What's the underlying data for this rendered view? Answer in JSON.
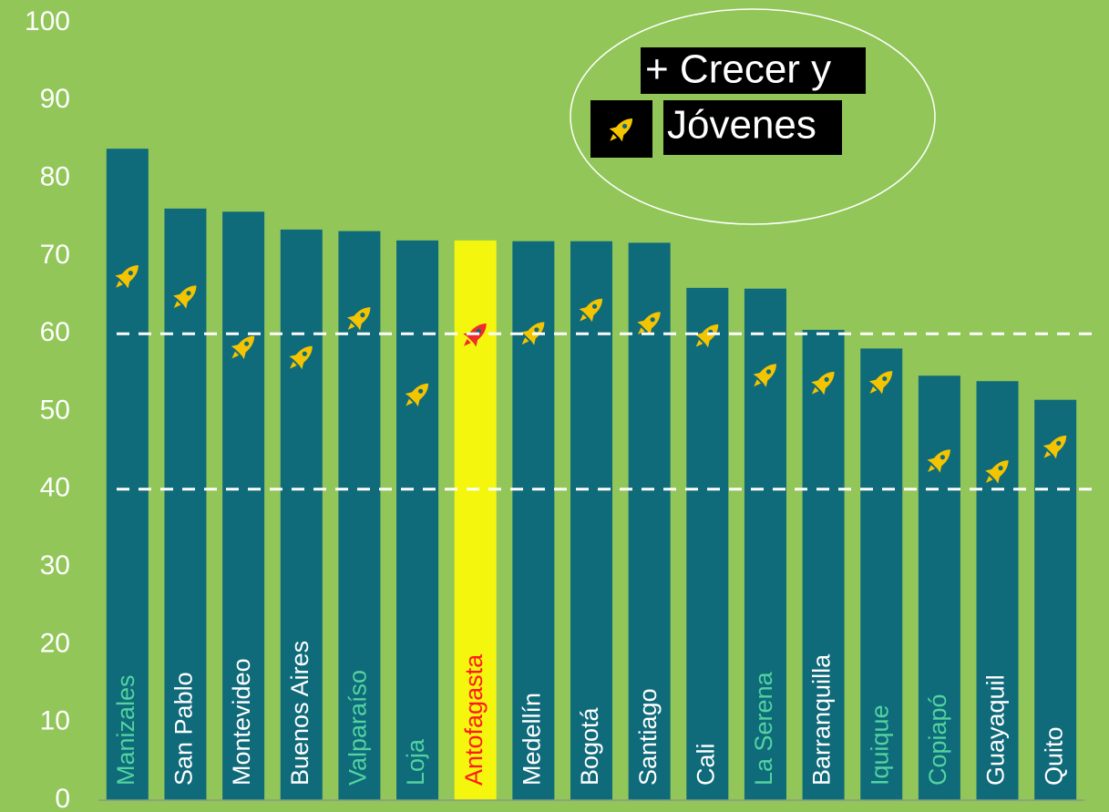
{
  "chart_data": {
    "type": "bar",
    "categories": [
      "Manizales",
      "San Pablo",
      "Montevideo",
      "Buenos Aires",
      "Valparaíso",
      "Loja",
      "Antofagasta",
      "Medellín",
      "Bogotá",
      "Santiago",
      "Cali",
      "La Serena",
      "Barranquilla",
      "Iquique",
      "Copiapó",
      "Guayaquil",
      "Quito"
    ],
    "label_colors": [
      "#52d3a0",
      "#ffffff",
      "#ffffff",
      "#ffffff",
      "#52d3a0",
      "#52d3a0",
      "#ff1a1a",
      "#ffffff",
      "#ffffff",
      "#ffffff",
      "#ffffff",
      "#52d3a0",
      "#ffffff",
      "#52d3a0",
      "#52d3a0",
      "#ffffff",
      "#ffffff"
    ],
    "series": [
      {
        "values": [
          83.8,
          76.1,
          75.7,
          73.4,
          73.2,
          72.0,
          72.0,
          71.9,
          71.9,
          71.7,
          65.9,
          65.8,
          60.5,
          58.1,
          54.6,
          53.9,
          51.5
        ],
        "colors": [
          "#0f6a7a",
          "#0f6a7a",
          "#0f6a7a",
          "#0f6a7a",
          "#0f6a7a",
          "#0f6a7a",
          "#f4f70d",
          "#0f6a7a",
          "#0f6a7a",
          "#0f6a7a",
          "#0f6a7a",
          "#0f6a7a",
          "#0f6a7a",
          "#0f6a7a",
          "#0f6a7a",
          "#0f6a7a",
          "#0f6a7a"
        ]
      },
      {
        "name": "Jóvenes",
        "marker": "rocket",
        "values": [
          67.4,
          64.8,
          58.3,
          57.0,
          62.0,
          52.2,
          59.9,
          60.1,
          63.1,
          61.4,
          59.8,
          54.7,
          53.7,
          53.8,
          43.7,
          42.3,
          45.5
        ],
        "colors": [
          "#f5c400",
          "#f5c400",
          "#f5c400",
          "#f5c400",
          "#f5c400",
          "#f5c400",
          "#f02b2b",
          "#f5c400",
          "#f5c400",
          "#f5c400",
          "#f5c400",
          "#f5c400",
          "#f5c400",
          "#f5c400",
          "#f5c400",
          "#f5c400",
          "#f5c400"
        ]
      }
    ],
    "legend_title": "+ Crecer y",
    "legend_color": "#f5c400",
    "ylim": [
      0,
      100
    ],
    "yticks": [
      0,
      10,
      20,
      30,
      40,
      50,
      60,
      70,
      80,
      90,
      100
    ],
    "reference_lines": [
      40,
      60
    ]
  }
}
